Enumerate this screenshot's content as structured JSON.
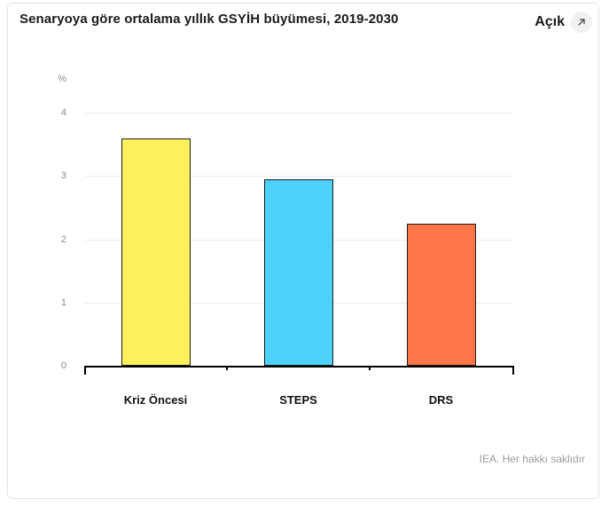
{
  "header": {
    "title": "Senaryoya göre ortalama yıllık GSYİH büyümesi, 2019-2030",
    "open_button": {
      "label": "Açık",
      "icon": "arrow-up-right-icon"
    }
  },
  "footer": {
    "credit": "IEA. Her hakkı saklıdır"
  },
  "colors": {
    "card_border": "#e4e4e4",
    "grid": "#ececec",
    "axis": "#000000",
    "tick_text": "#8a8a8a",
    "bar_outline": "#1a1a1a"
  },
  "chart_data": {
    "type": "bar",
    "categories": [
      "Kriz Öncesi",
      "STEPS",
      "DRS"
    ],
    "values": [
      3.6,
      2.95,
      2.25
    ],
    "bar_colors": [
      "#FCF15B",
      "#4DD1F9",
      "#FC7648"
    ],
    "title": "Senaryoya göre ortalama yıllık GSYİH büyümesi, 2019-2030",
    "xlabel": "",
    "ylabel": "%",
    "ylim": [
      0,
      4
    ],
    "yticks": [
      0,
      1,
      2,
      3,
      4
    ],
    "grid": true,
    "legend": false
  }
}
